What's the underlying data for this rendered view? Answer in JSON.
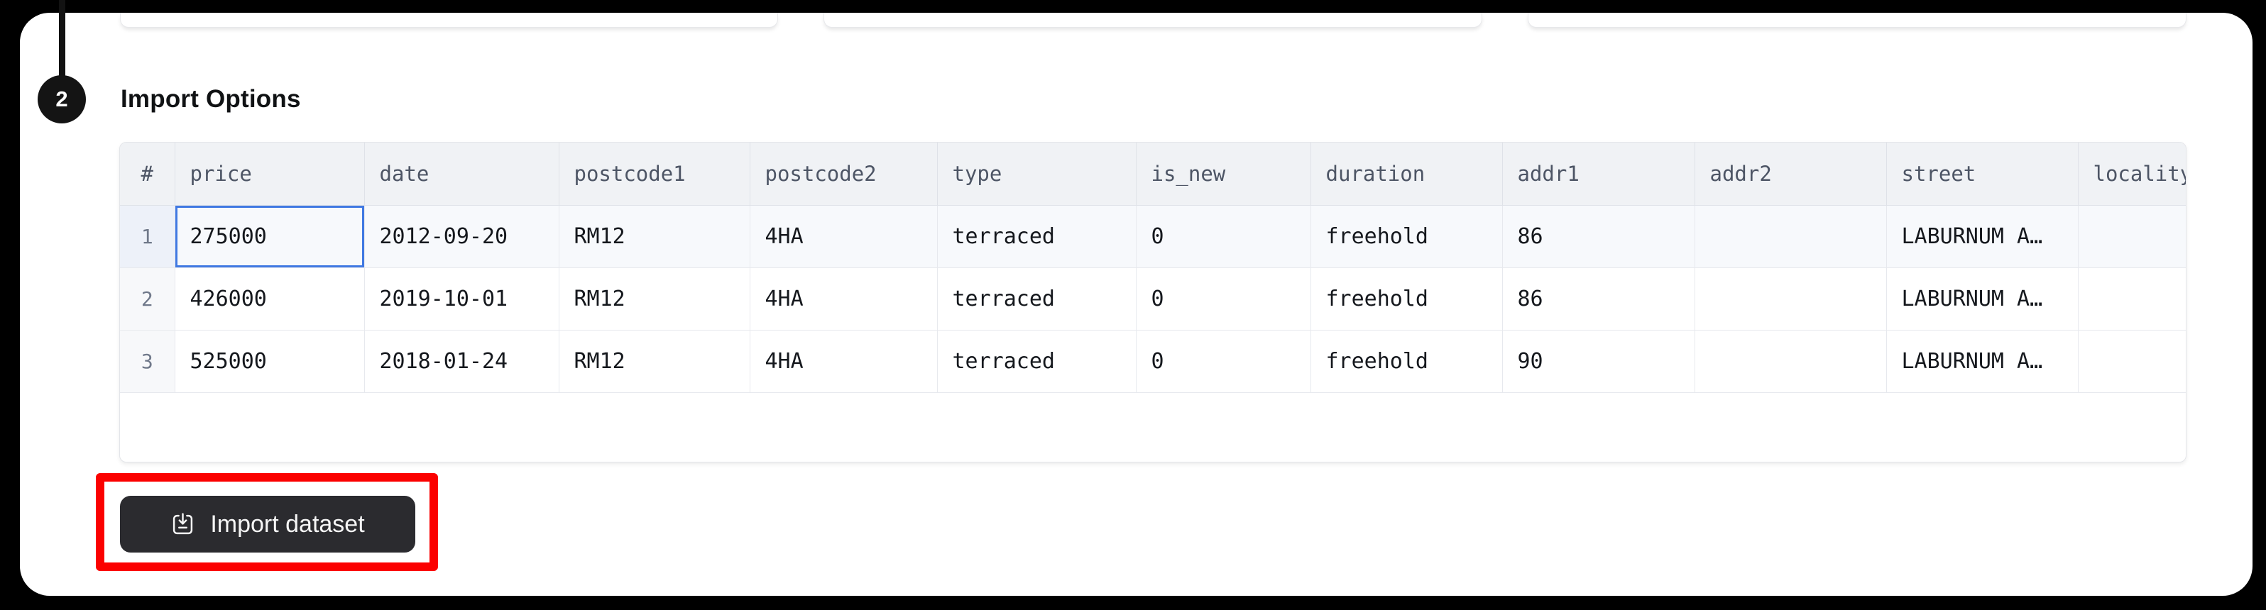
{
  "step": {
    "number": "2",
    "title": "Import Options"
  },
  "table": {
    "columns": [
      "#",
      "price",
      "date",
      "postcode1",
      "postcode2",
      "type",
      "is_new",
      "duration",
      "addr1",
      "addr2",
      "street",
      "locality"
    ],
    "rows": [
      {
        "num": "1",
        "cells": [
          "275000",
          "2012-09-20",
          "RM12",
          "4HA",
          "terraced",
          "0",
          "freehold",
          "86",
          "",
          "LABURNUM A…",
          ""
        ]
      },
      {
        "num": "2",
        "cells": [
          "426000",
          "2019-10-01",
          "RM12",
          "4HA",
          "terraced",
          "0",
          "freehold",
          "86",
          "",
          "LABURNUM A…",
          ""
        ]
      },
      {
        "num": "3",
        "cells": [
          "525000",
          "2018-01-24",
          "RM12",
          "4HA",
          "terraced",
          "0",
          "freehold",
          "90",
          "",
          "LABURNUM A…",
          ""
        ]
      }
    ],
    "selected_cell": {
      "row": "1",
      "column": "price",
      "value": "275000"
    }
  },
  "actions": {
    "import_button_label": "Import dataset"
  },
  "icons": {
    "import_button": "download-tray-icon"
  },
  "colors": {
    "annotation_highlight": "#fb0100",
    "cell_selection_border": "#4079e2",
    "import_button_bg": "#2b2b2f",
    "frame_bg": "#000000"
  }
}
